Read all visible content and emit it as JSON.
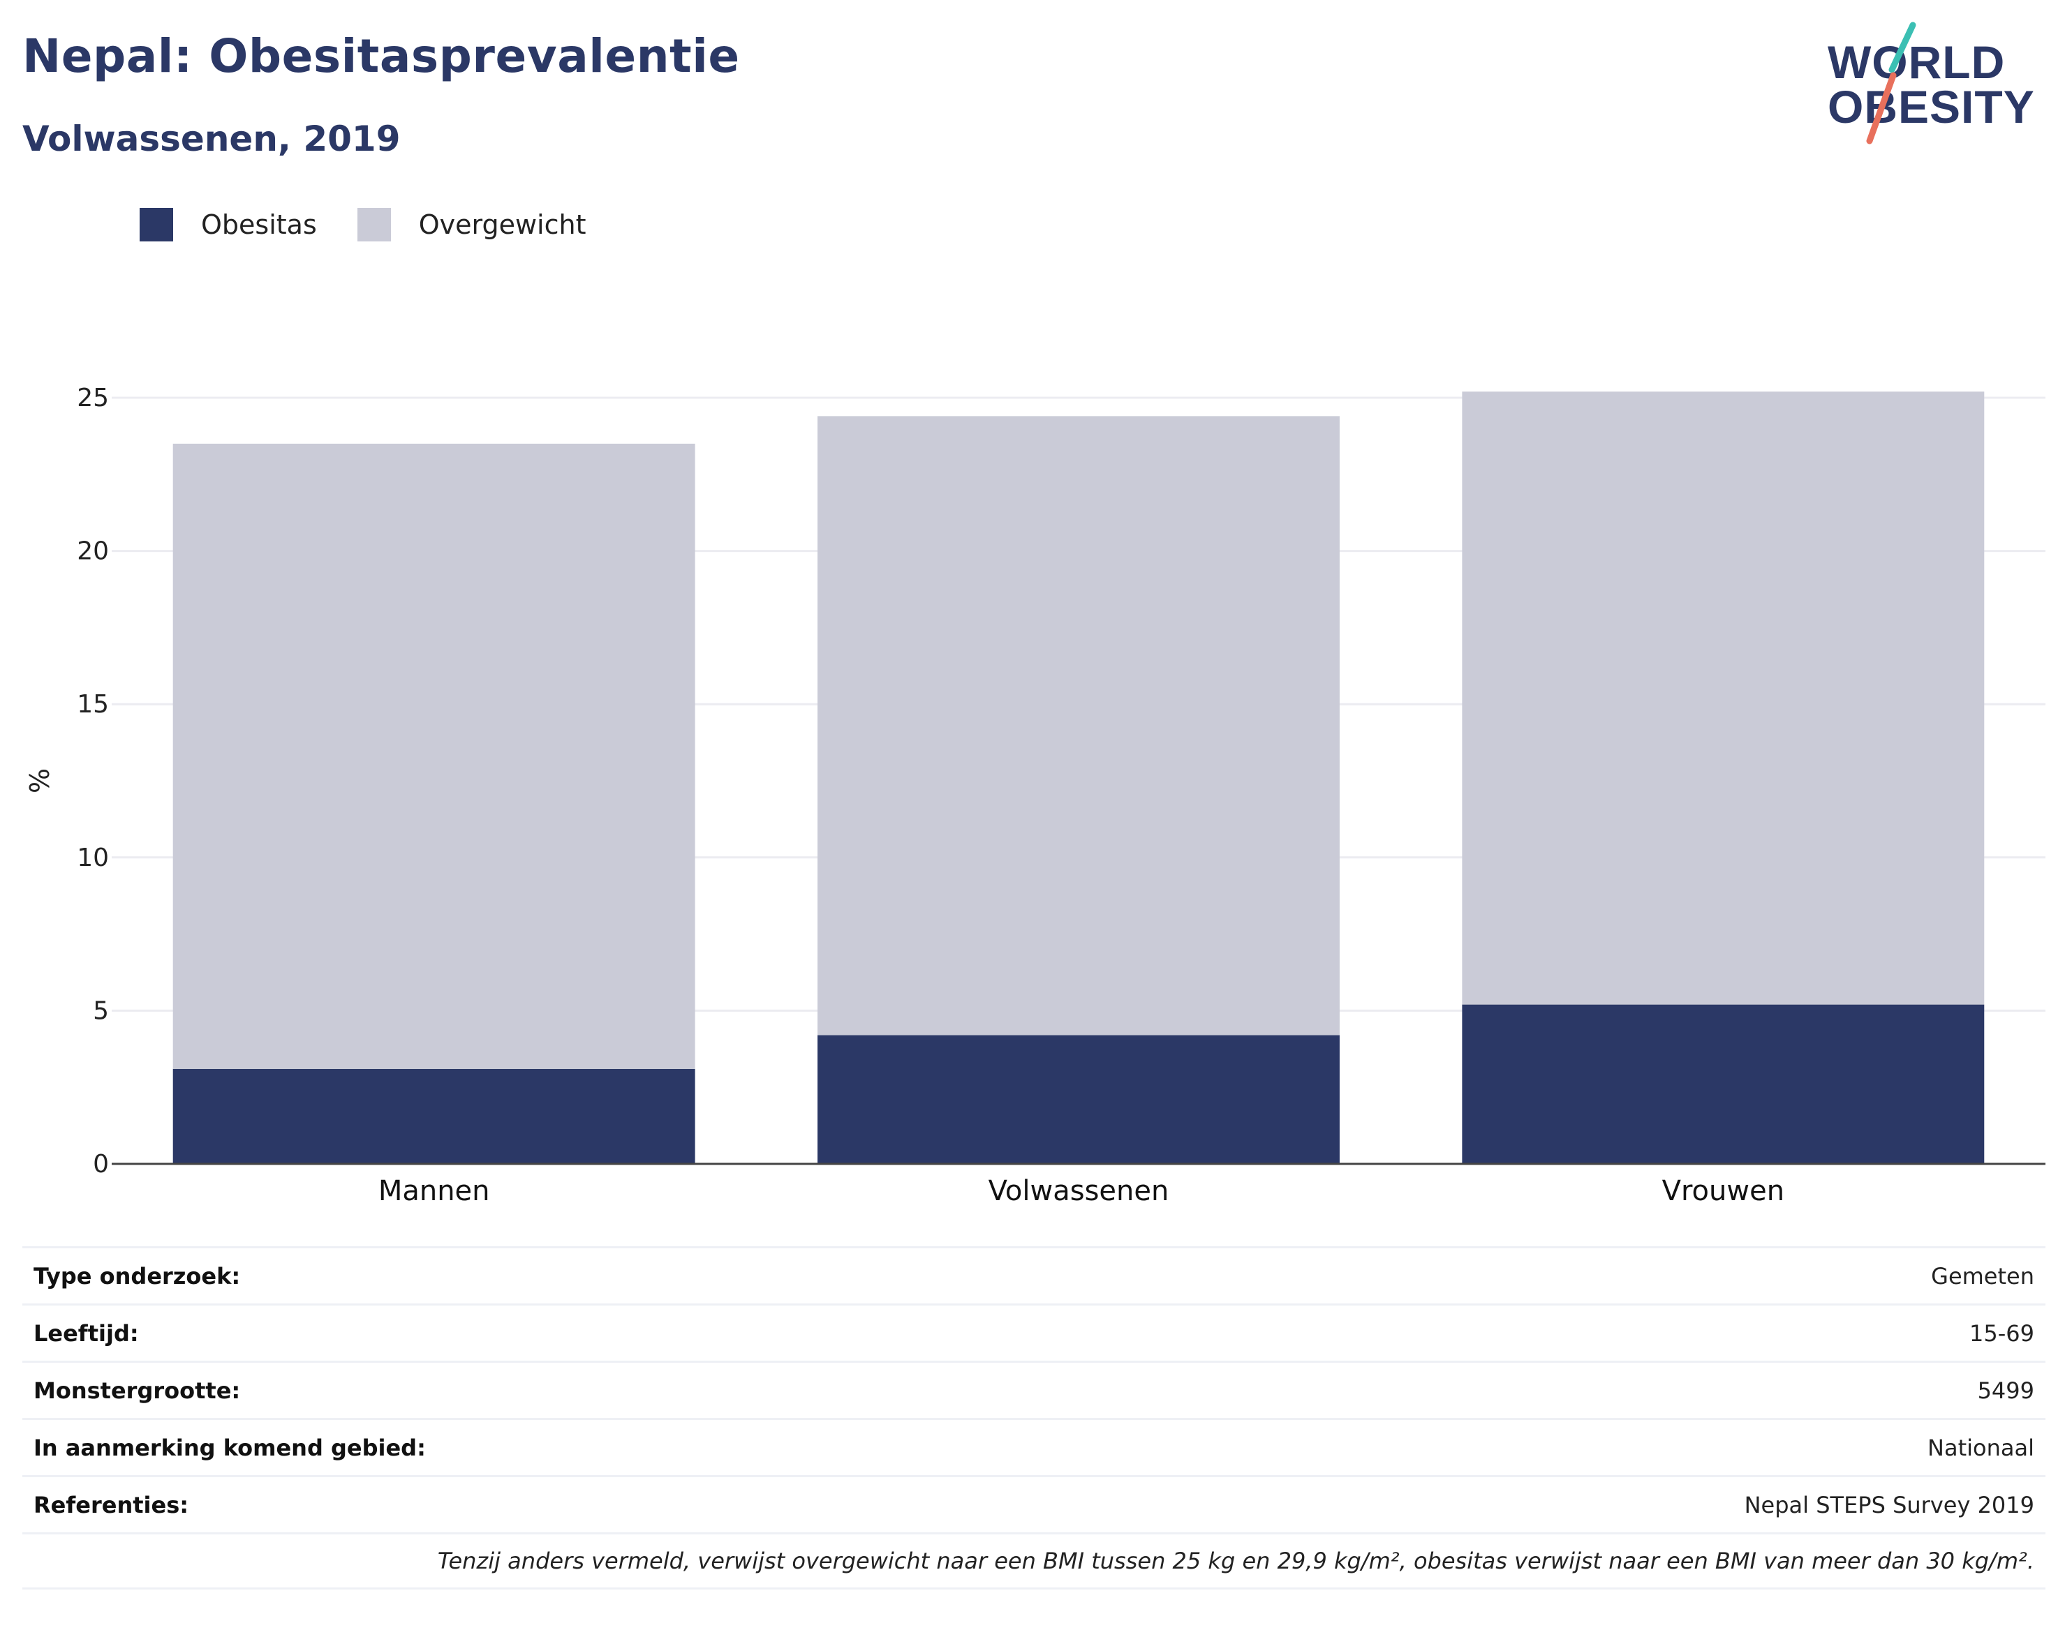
{
  "header": {
    "title": "Nepal: Obesitasprevalentie",
    "subtitle": "Volwassenen, 2019"
  },
  "logo": {
    "line1": "WORLD",
    "line2": "OBESITY",
    "name": "world-obesity-logo"
  },
  "legend": [
    {
      "label": "Obesitas",
      "color": "#2b3866"
    },
    {
      "label": "Overgewicht",
      "color": "#cacbd7"
    }
  ],
  "chart_data": {
    "type": "bar",
    "stacked": true,
    "categories": [
      "Mannen",
      "Volwassenen",
      "Vrouwen"
    ],
    "series": [
      {
        "name": "Obesitas",
        "color": "#2b3866",
        "values": [
          3.1,
          4.2,
          5.2
        ]
      },
      {
        "name": "Overgewicht",
        "color": "#cacbd7",
        "values": [
          20.4,
          20.2,
          20.0
        ]
      }
    ],
    "ylabel": "%",
    "ylim": [
      0,
      25
    ],
    "yticks": [
      0,
      5,
      10,
      15,
      20,
      25
    ],
    "grid": true,
    "legend_position": "top-left"
  },
  "info": {
    "rows": [
      {
        "key": "Type onderzoek:",
        "value": "Gemeten"
      },
      {
        "key": "Leeftijd:",
        "value": "15-69"
      },
      {
        "key": "Monstergrootte:",
        "value": "5499"
      },
      {
        "key": "In aanmerking komend gebied:",
        "value": "Nationaal"
      },
      {
        "key": "Referenties:",
        "value": "Nepal STEPS Survey 2019"
      }
    ],
    "note": "Tenzij anders vermeld, verwijst overgewicht naar een BMI tussen 25 kg en 29,9 kg/m², obesitas verwijst naar een BMI van meer dan 30 kg/m²."
  }
}
